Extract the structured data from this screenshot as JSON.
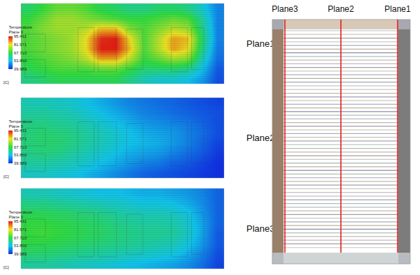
{
  "chart_data": [
    {
      "type": "heatmap",
      "title": "Plane1",
      "tick_labels": false,
      "z": [
        [
          64,
          68,
          72,
          72,
          70,
          66,
          64,
          62,
          62,
          64,
          64,
          62,
          56,
          48
        ],
        [
          68,
          72,
          76,
          76,
          74,
          72,
          70,
          68,
          68,
          70,
          72,
          70,
          60,
          48
        ],
        [
          70,
          74,
          76,
          76,
          78,
          84,
          84,
          74,
          70,
          74,
          78,
          76,
          62,
          48
        ],
        [
          70,
          72,
          74,
          76,
          82,
          94,
          95,
          82,
          70,
          78,
          86,
          84,
          64,
          48
        ],
        [
          70,
          72,
          74,
          76,
          82,
          95,
          95,
          84,
          70,
          78,
          86,
          82,
          62,
          47
        ],
        [
          68,
          70,
          72,
          74,
          78,
          86,
          86,
          78,
          68,
          72,
          76,
          74,
          58,
          46
        ],
        [
          66,
          68,
          70,
          70,
          70,
          72,
          72,
          68,
          64,
          64,
          64,
          62,
          54,
          44
        ],
        [
          62,
          64,
          66,
          66,
          66,
          66,
          66,
          62,
          58,
          56,
          56,
          54,
          50,
          43
        ]
      ],
      "colorbar": {
        "title": "Temperature",
        "subtitle": "Plane 3",
        "unit": "[C]",
        "range": [
          39.989,
          95.431
        ],
        "ticks": [
          39.989,
          {
            "value": 53.85,
            "label": "53.850"
          },
          {
            "value": 67.71,
            "label": "67.710"
          },
          81.571,
          95.431
        ]
      }
    },
    {
      "type": "heatmap",
      "title": "Plane2",
      "tick_labels": false,
      "z": [
        [
          58,
          58,
          57,
          56,
          54,
          52,
          50,
          48,
          47,
          46,
          45,
          44,
          43,
          42
        ],
        [
          60,
          60,
          59,
          58,
          56,
          54,
          52,
          50,
          48,
          47,
          46,
          45,
          44,
          43
        ],
        [
          62,
          62,
          61,
          60,
          58,
          56,
          54,
          52,
          50,
          49,
          48,
          47,
          45,
          43
        ],
        [
          63,
          64,
          63,
          62,
          60,
          58,
          56,
          54,
          52,
          51,
          50,
          48,
          46,
          43
        ],
        [
          63,
          64,
          64,
          62,
          60,
          58,
          56,
          54,
          53,
          52,
          50,
          48,
          45,
          42
        ],
        [
          62,
          63,
          62,
          60,
          58,
          56,
          54,
          52,
          51,
          50,
          48,
          46,
          44,
          41
        ],
        [
          60,
          60,
          59,
          58,
          56,
          54,
          52,
          50,
          48,
          47,
          45,
          44,
          42,
          40
        ],
        [
          57,
          57,
          56,
          55,
          53,
          51,
          49,
          47,
          45,
          44,
          43,
          42,
          41,
          40
        ]
      ],
      "colorbar": {
        "title": "Temperature",
        "subtitle": "Plane 3",
        "unit": "[C]",
        "range": [
          39.989,
          95.431
        ],
        "ticks": [
          39.989,
          {
            "value": 53.85,
            "label": "53.850"
          },
          {
            "value": 67.71,
            "label": "67.710"
          },
          81.571,
          95.431
        ]
      }
    },
    {
      "type": "heatmap",
      "title": "Plane3",
      "tick_labels": false,
      "z": [
        [
          58,
          58,
          57,
          56,
          55,
          54,
          54,
          53,
          52,
          52,
          51,
          50,
          48,
          45
        ],
        [
          62,
          62,
          61,
          60,
          59,
          58,
          57,
          56,
          55,
          55,
          54,
          52,
          49,
          45
        ],
        [
          66,
          66,
          65,
          64,
          63,
          62,
          60,
          59,
          58,
          58,
          57,
          55,
          50,
          45
        ],
        [
          68,
          68,
          67,
          66,
          65,
          64,
          62,
          61,
          60,
          60,
          59,
          56,
          51,
          45
        ],
        [
          68,
          69,
          68,
          67,
          66,
          65,
          63,
          62,
          61,
          61,
          60,
          57,
          51,
          44
        ],
        [
          67,
          67,
          66,
          65,
          64,
          63,
          62,
          61,
          60,
          59,
          58,
          55,
          50,
          44
        ],
        [
          64,
          64,
          63,
          62,
          61,
          60,
          59,
          58,
          57,
          56,
          55,
          52,
          48,
          43
        ],
        [
          60,
          60,
          59,
          58,
          57,
          56,
          55,
          54,
          53,
          52,
          51,
          49,
          46,
          42
        ]
      ],
      "colorbar": {
        "title": "Temperature",
        "subtitle": "Plane 3",
        "unit": "[C]",
        "range": [
          39.989,
          95.431
        ],
        "ticks": [
          39.989,
          {
            "value": 53.85,
            "label": "53.850"
          },
          {
            "value": 67.71,
            "label": "67.710"
          },
          81.571,
          95.431
        ]
      }
    }
  ],
  "diagram": {
    "planes": [
      "Plane3",
      "Plane2",
      "Plane1"
    ]
  }
}
